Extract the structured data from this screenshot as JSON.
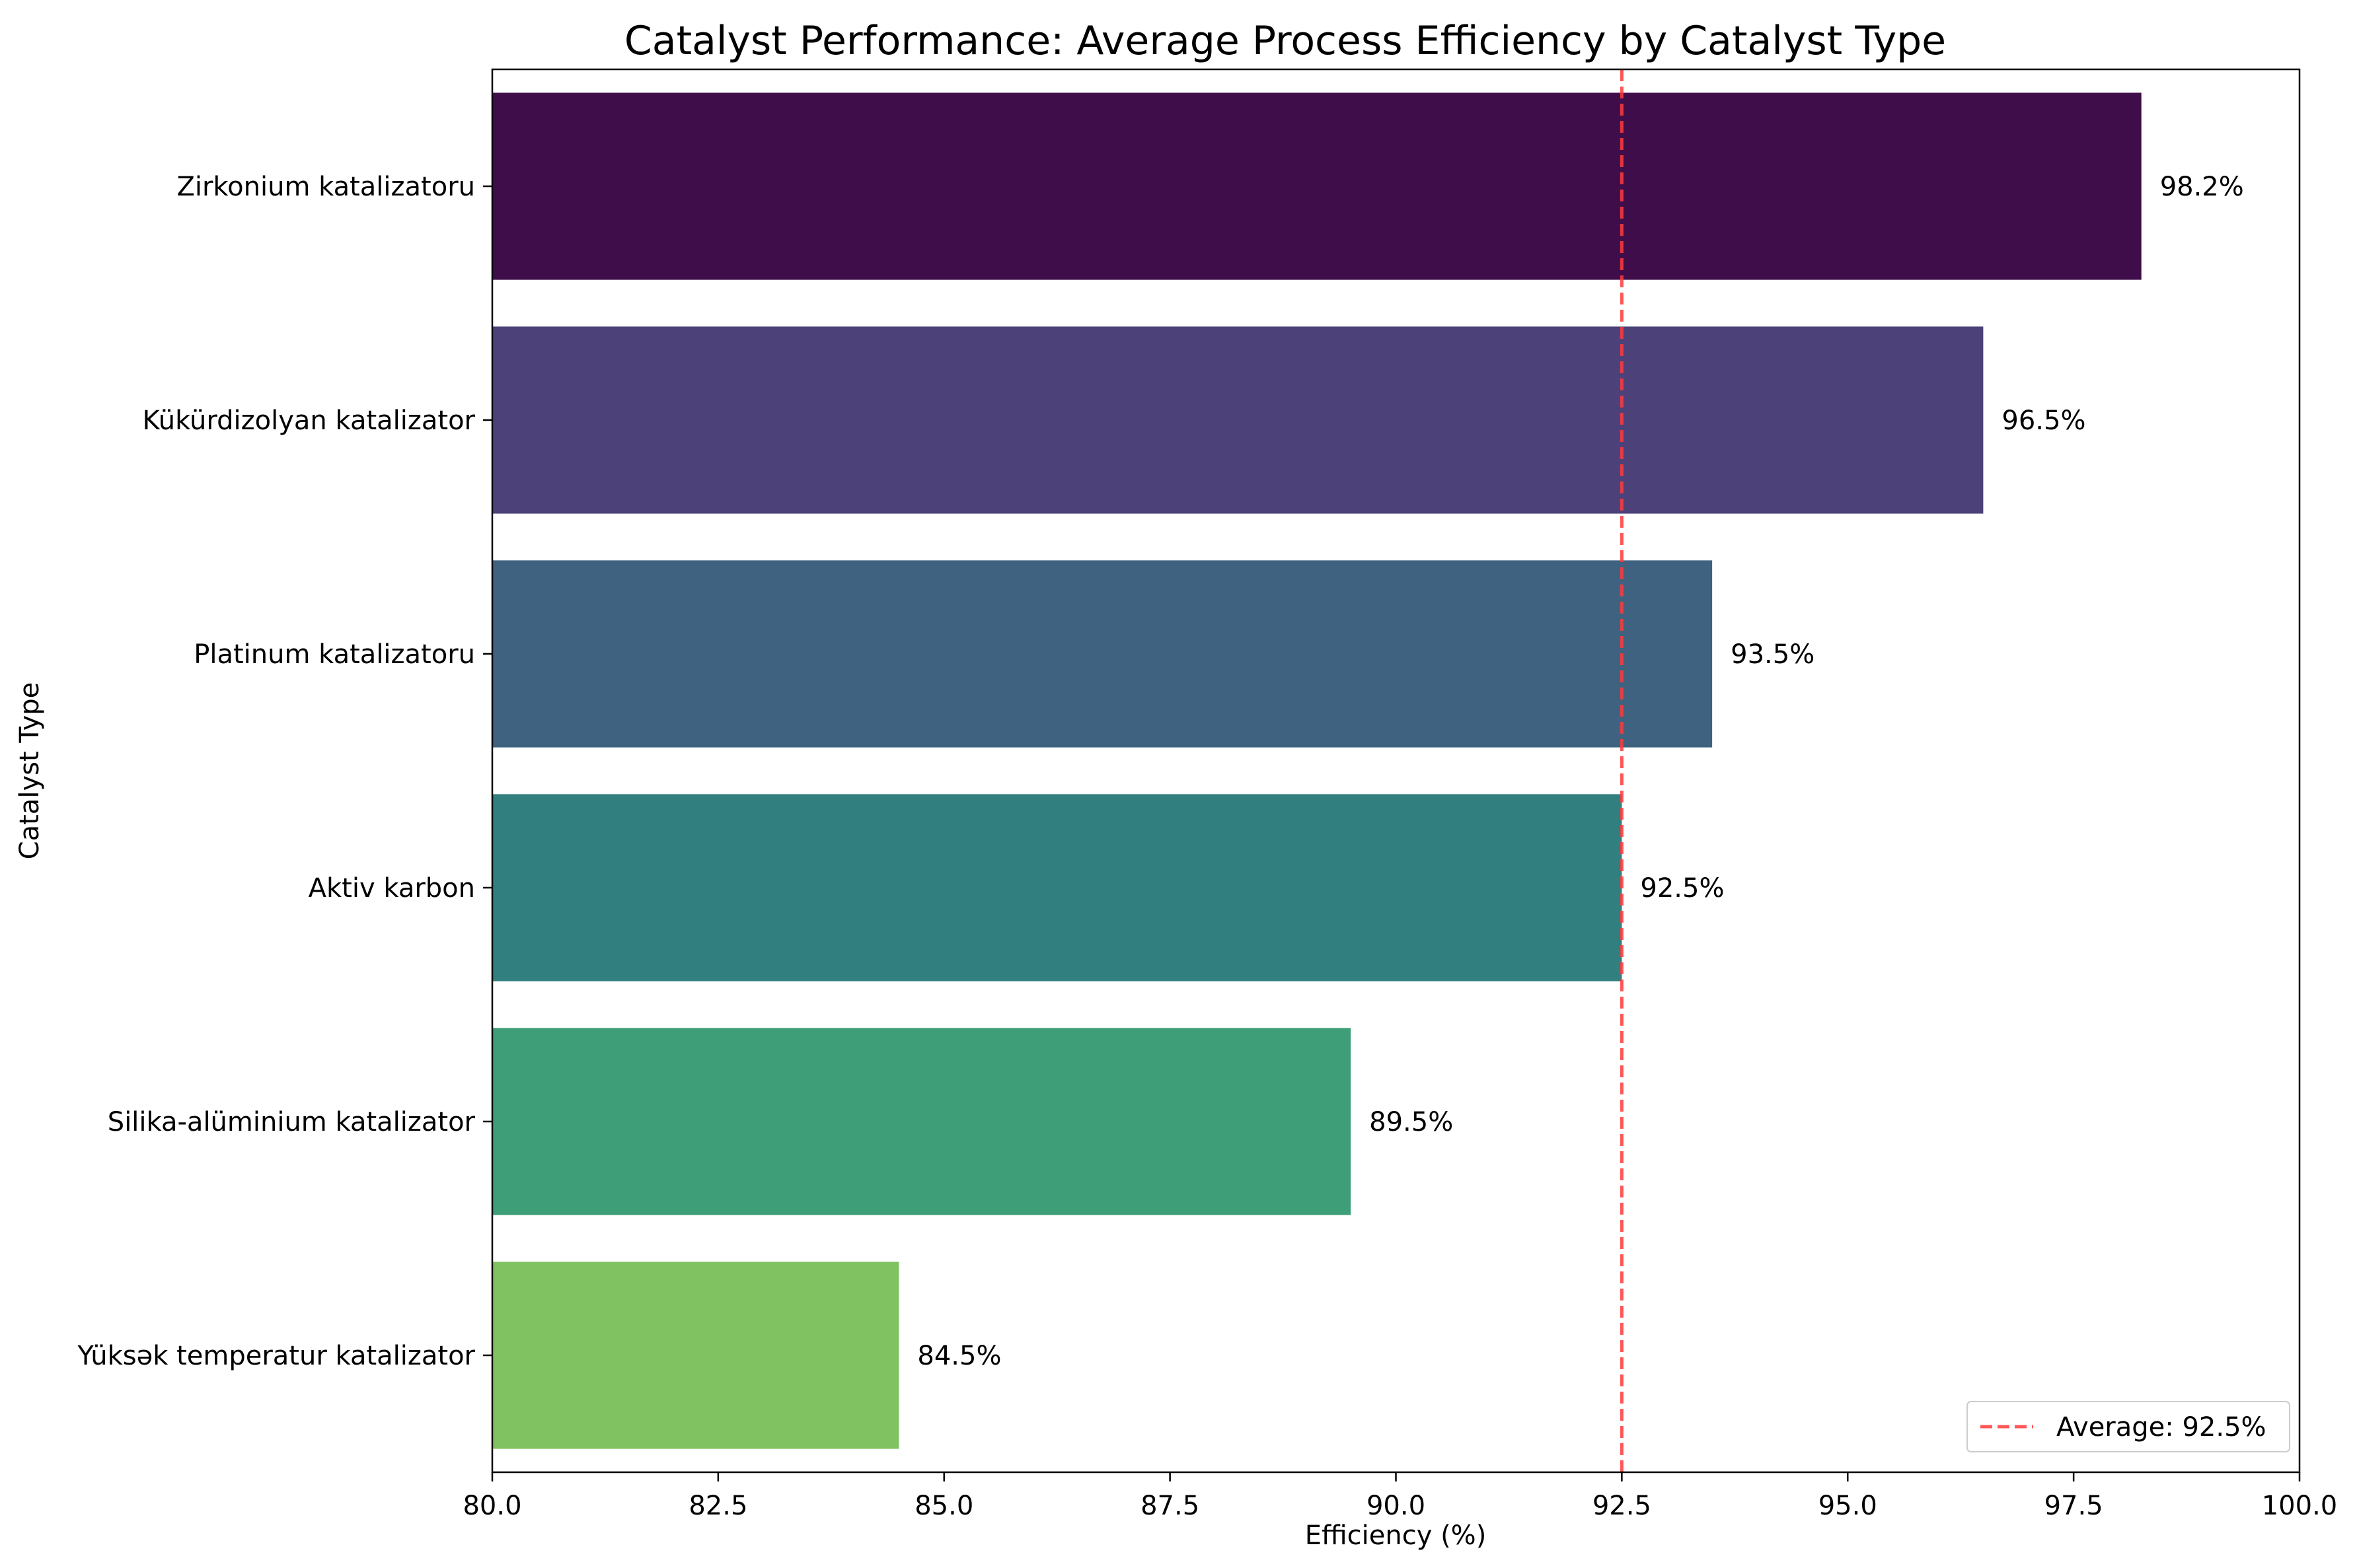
{
  "chart_data": {
    "type": "bar",
    "orientation": "horizontal",
    "title": "Catalyst Performance: Average Process Efficiency by Catalyst Type",
    "xlabel": "Efficiency (%)",
    "ylabel": "Catalyst Type",
    "xlim": [
      80,
      100
    ],
    "x_ticks": [
      "80.0",
      "82.5",
      "85.0",
      "87.5",
      "90.0",
      "92.5",
      "95.0",
      "97.5",
      "100.0"
    ],
    "categories": [
      "Zirkonium katalizatoru",
      "Kükürdizolyan katalizator",
      "Platinum katalizatoru",
      "Aktiv karbon",
      "Silika-alüminium katalizator",
      "Yüksək temperatur katalizator"
    ],
    "values": [
      98.25,
      96.5,
      93.5,
      92.5,
      89.5,
      84.5
    ],
    "value_labels": [
      "98.2%",
      "96.5%",
      "93.5%",
      "92.5%",
      "89.5%",
      "84.5%"
    ],
    "colors": [
      "#3f0e4a",
      "#4c4178",
      "#3e6280",
      "#317f7f",
      "#3d9e78",
      "#80c262"
    ],
    "reference_line": {
      "value": 92.5,
      "label": "Average: 92.5%",
      "color": "#ff3b3b",
      "style": "dashed"
    },
    "legend": {
      "placement": "bottom-right"
    },
    "grid": false
  }
}
